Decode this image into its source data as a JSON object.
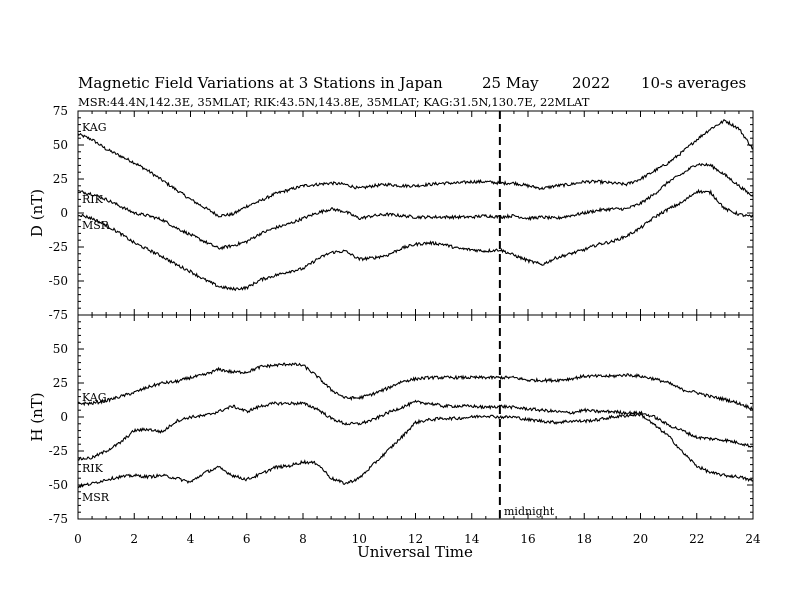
{
  "chart_data": [
    {
      "type": "line",
      "panel": "top",
      "title": "Magnetic Field Variations at 3 Stations in Japan",
      "date": "25 May",
      "year": "2022",
      "averaging": "10-s averages",
      "subtitle": "MSR:44.4N,142.3E, 35MLAT;   RIK:43.5N,143.8E, 35MLAT;   KAG:31.5N,130.7E, 22MLAT",
      "ylabel": "D (nT)",
      "xlabel": "",
      "xlim": [
        0,
        24
      ],
      "ylim": [
        -75,
        75
      ],
      "yticks": [
        "75",
        "50",
        "25",
        "0",
        "-25",
        "-50",
        "-75"
      ],
      "series": [
        {
          "name": "KAG",
          "x": [
            0,
            0.5,
            1,
            1.5,
            2,
            2.5,
            3,
            3.5,
            4,
            4.5,
            5,
            5.5,
            6,
            6.5,
            7,
            7.5,
            8,
            8.5,
            9,
            9.5,
            10,
            10.5,
            11,
            11.5,
            12,
            12.5,
            13,
            13.5,
            14,
            14.5,
            15,
            15.5,
            16,
            16.5,
            17,
            17.5,
            18,
            18.5,
            19,
            19.5,
            20,
            20.5,
            21,
            21.5,
            22,
            22.5,
            23,
            23.5,
            24
          ],
          "y": [
            58,
            54,
            47,
            42,
            37,
            31,
            24,
            17,
            10,
            4,
            -2,
            -1,
            5,
            9,
            14,
            17,
            20,
            21,
            22,
            21,
            18,
            20,
            21,
            20,
            20,
            21,
            22,
            22,
            23,
            23,
            22,
            22,
            20,
            18,
            20,
            21,
            23,
            23,
            22,
            21,
            25,
            31,
            37,
            45,
            54,
            62,
            68,
            62,
            47
          ]
        },
        {
          "name": "RIK",
          "x": [
            0,
            0.5,
            1,
            1.5,
            2,
            2.5,
            3,
            3.5,
            4,
            4.5,
            5,
            5.5,
            6,
            6.5,
            7,
            7.5,
            8,
            8.5,
            9,
            9.5,
            10,
            10.5,
            11,
            11.5,
            12,
            12.5,
            13,
            13.5,
            14,
            14.5,
            15,
            15.5,
            16,
            16.5,
            17,
            17.5,
            18,
            18.5,
            19,
            19.5,
            20,
            20.5,
            21,
            21.5,
            22,
            22.5,
            23,
            23.5,
            24
          ],
          "y": [
            16,
            14,
            10,
            5,
            0,
            -2,
            -5,
            -11,
            -16,
            -21,
            -26,
            -24,
            -21,
            -15,
            -11,
            -8,
            -4,
            0,
            3,
            1,
            -4,
            -2,
            -1,
            -2,
            -3,
            -3,
            -3,
            -3,
            -3,
            -2,
            -3,
            -2,
            -4,
            -3,
            -4,
            -2,
            0,
            2,
            3,
            3,
            7,
            14,
            23,
            29,
            36,
            35,
            28,
            20,
            12
          ]
        },
        {
          "name": "MSR",
          "x": [
            0,
            0.5,
            1,
            1.5,
            2,
            2.5,
            3,
            3.5,
            4,
            4.5,
            5,
            5.5,
            6,
            6.5,
            7,
            7.5,
            8,
            8.5,
            9,
            9.5,
            10,
            10.5,
            11,
            11.5,
            12,
            12.5,
            13,
            13.5,
            14,
            14.5,
            15,
            15.5,
            16,
            16.5,
            17,
            17.5,
            18,
            18.5,
            19,
            19.5,
            20,
            20.5,
            21,
            21.5,
            22,
            22.5,
            23,
            23.5,
            24
          ],
          "y": [
            -1,
            -4,
            -9,
            -15,
            -22,
            -27,
            -32,
            -38,
            -43,
            -49,
            -54,
            -56,
            -55,
            -49,
            -46,
            -43,
            -41,
            -34,
            -29,
            -28,
            -34,
            -33,
            -31,
            -26,
            -23,
            -22,
            -23,
            -26,
            -27,
            -28,
            -27,
            -31,
            -35,
            -38,
            -33,
            -30,
            -27,
            -23,
            -21,
            -17,
            -11,
            -3,
            3,
            8,
            16,
            15,
            3,
            -1,
            -3
          ]
        }
      ]
    },
    {
      "type": "line",
      "panel": "bottom",
      "ylabel": "H (nT)",
      "xlabel": "Universal Time",
      "xlim": [
        0,
        24
      ],
      "ylim": [
        -75,
        75
      ],
      "xticks": [
        "0",
        "2",
        "4",
        "6",
        "8",
        "10",
        "12",
        "14",
        "16",
        "18",
        "20",
        "22",
        "24"
      ],
      "yticks": [
        "50",
        "25",
        "0",
        "-25",
        "-50",
        "-75"
      ],
      "annotation": {
        "text": "midnight",
        "x": 15
      },
      "series": [
        {
          "name": "KAG",
          "x": [
            0,
            0.5,
            1,
            1.5,
            2,
            2.5,
            3,
            3.5,
            4,
            4.5,
            5,
            5.5,
            6,
            6.5,
            7,
            7.5,
            8,
            8.5,
            9,
            9.5,
            10,
            10.5,
            11,
            11.5,
            12,
            12.5,
            13,
            13.5,
            14,
            14.5,
            15,
            15.5,
            16,
            16.5,
            17,
            17.5,
            18,
            18.5,
            19,
            19.5,
            20,
            20.5,
            21,
            21.5,
            22,
            22.5,
            23,
            23.5,
            24
          ],
          "y": [
            10,
            10,
            12,
            15,
            18,
            22,
            25,
            26,
            29,
            31,
            35,
            33,
            33,
            37,
            38,
            39,
            38,
            30,
            20,
            14,
            14,
            17,
            21,
            26,
            28,
            29,
            29,
            29,
            29,
            29,
            29,
            29,
            27,
            27,
            27,
            28,
            30,
            30,
            30,
            31,
            30,
            28,
            25,
            20,
            18,
            15,
            13,
            10,
            6
          ]
        },
        {
          "name": "RIK",
          "x": [
            0,
            0.5,
            1,
            1.5,
            2,
            2.5,
            3,
            3.5,
            4,
            4.5,
            5,
            5.5,
            6,
            6.5,
            7,
            7.5,
            8,
            8.5,
            9,
            9.5,
            10,
            10.5,
            11,
            11.5,
            12,
            12.5,
            13,
            13.5,
            14,
            14.5,
            15,
            15.5,
            16,
            16.5,
            17,
            17.5,
            18,
            18.5,
            19,
            19.5,
            20,
            20.5,
            21,
            21.5,
            22,
            22.5,
            23,
            23.5,
            24
          ],
          "y": [
            -31,
            -30,
            -25,
            -19,
            -10,
            -9,
            -11,
            -3,
            0,
            1,
            4,
            8,
            4,
            8,
            10,
            10,
            10,
            6,
            -1,
            -5,
            -5,
            -2,
            3,
            7,
            11,
            10,
            8,
            8,
            8,
            7,
            8,
            7,
            6,
            5,
            4,
            3,
            5,
            4,
            4,
            3,
            3,
            0,
            -6,
            -10,
            -15,
            -16,
            -17,
            -19,
            -22
          ]
        },
        {
          "name": "MSR",
          "x": [
            0,
            0.5,
            1,
            1.5,
            2,
            2.5,
            3,
            3.5,
            4,
            4.5,
            5,
            5.5,
            6,
            6.5,
            7,
            7.5,
            8,
            8.5,
            9,
            9.5,
            10,
            10.5,
            11,
            11.5,
            12,
            12.5,
            13,
            13.5,
            14,
            14.5,
            15,
            15.5,
            16,
            16.5,
            17,
            17.5,
            18,
            18.5,
            19,
            19.5,
            20,
            20.5,
            21,
            21.5,
            22,
            22.5,
            23,
            23.5,
            24
          ],
          "y": [
            -51,
            -49,
            -46,
            -44,
            -43,
            -44,
            -43,
            -45,
            -48,
            -41,
            -37,
            -43,
            -46,
            -42,
            -37,
            -36,
            -33,
            -34,
            -45,
            -49,
            -45,
            -35,
            -25,
            -15,
            -4,
            -2,
            -1,
            -1,
            0,
            1,
            0,
            0,
            -2,
            -3,
            -4,
            -3,
            -3,
            -2,
            0,
            1,
            2,
            -6,
            -14,
            -26,
            -36,
            -41,
            -43,
            -44,
            -47
          ]
        }
      ]
    }
  ]
}
